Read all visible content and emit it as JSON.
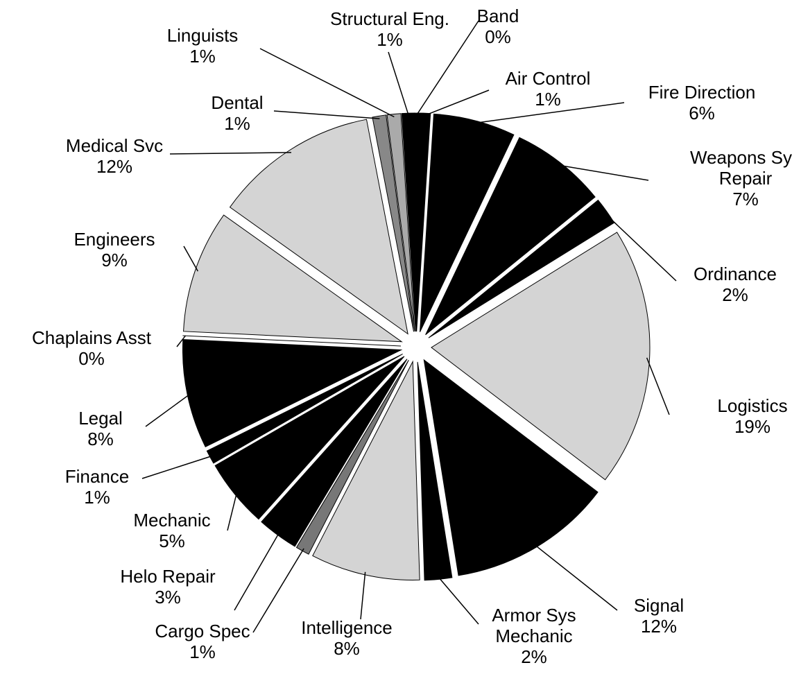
{
  "chart_data": {
    "type": "pie",
    "categories": [
      "Band",
      "Air Control",
      "Fire Direction",
      "Weapons Sys Repair",
      "Ordinance",
      "Logistics",
      "Signal",
      "Armor Sys Mechanic",
      "Intelligence",
      "Cargo Spec",
      "Helo Repair",
      "Mechanic",
      "Finance",
      "Legal",
      "Chaplains Asst",
      "Engineers",
      "Medical Svc",
      "Dental",
      "Linguists",
      "Structural Eng."
    ],
    "values": [
      0,
      1,
      6,
      7,
      2,
      19,
      12,
      2,
      8,
      1,
      3,
      5,
      1,
      8,
      0,
      9,
      12,
      1,
      1,
      1
    ],
    "value_labels": [
      "0%",
      "1%",
      "6%",
      "7%",
      "2%",
      "19%",
      "12%",
      "2%",
      "8%",
      "1%",
      "3%",
      "5%",
      "1%",
      "8%",
      "0%",
      "9%",
      "12%",
      "1%",
      "1%",
      "1%"
    ],
    "colors": [
      "#999999",
      "#000000",
      "#000000",
      "#000000",
      "#000000",
      "#d4d4d4",
      "#000000",
      "#000000",
      "#d4d4d4",
      "#777777",
      "#000000",
      "#000000",
      "#000000",
      "#000000",
      "#000000",
      "#d4d4d4",
      "#d4d4d4",
      "#888888",
      "#aaaaaa",
      "#000000"
    ]
  }
}
